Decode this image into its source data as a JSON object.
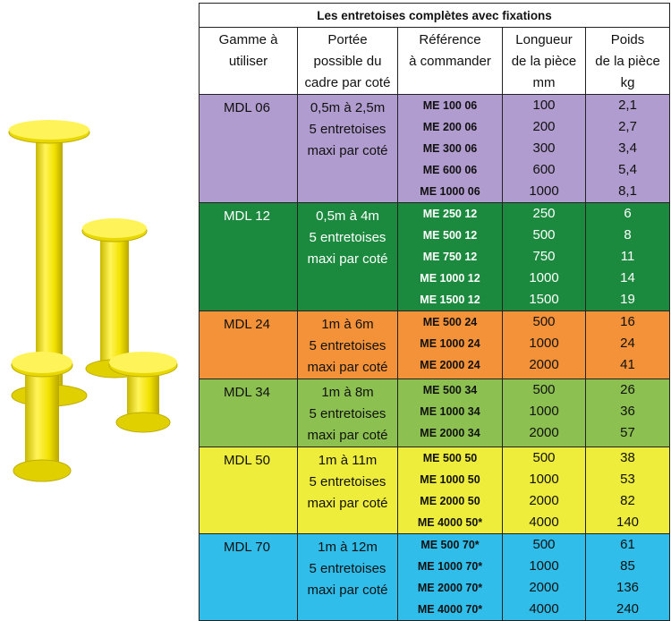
{
  "table": {
    "title": "Les entretoises complètes avec fixations",
    "headers": {
      "gamme": [
        "Gamme à",
        "utiliser"
      ],
      "portee": [
        "Portée",
        "possible du",
        "cadre par coté"
      ],
      "reference": [
        "Référence",
        "à commander"
      ],
      "longueur": [
        "Longueur",
        "de la pièce",
        "mm"
      ],
      "poids": [
        "Poids",
        "de la pièce",
        "kg"
      ]
    },
    "groups": [
      {
        "gamme": "MDL 06",
        "portee": [
          "0,5m à 2,5m",
          "5 entretoises",
          "maxi par coté"
        ],
        "color": "#b09ccf",
        "refs": [
          "ME 100 06",
          "ME 200 06",
          "ME 300 06",
          "ME 600 06",
          "ME 1000 06"
        ],
        "longueurs": [
          "100",
          "200",
          "300",
          "600",
          "1000"
        ],
        "poids": [
          "2,1",
          "2,7",
          "3,4",
          "5,4",
          "8,1"
        ]
      },
      {
        "gamme": "MDL 12",
        "portee": [
          "0,5m à 4m",
          "5 entretoises",
          "maxi par coté"
        ],
        "color": "#1c8a3e",
        "refs": [
          "ME 250 12",
          "ME 500 12",
          "ME 750 12",
          "ME 1000 12",
          "ME 1500 12"
        ],
        "longueurs": [
          "250",
          "500",
          "750",
          "1000",
          "1500"
        ],
        "poids": [
          "6",
          "8",
          "11",
          "14",
          "19"
        ]
      },
      {
        "gamme": "MDL 24",
        "portee": [
          "1m à 6m",
          "5 entretoises",
          "maxi par coté"
        ],
        "color": "#f4923a",
        "refs": [
          "ME 500 24",
          "ME 1000 24",
          "ME 2000 24"
        ],
        "longueurs": [
          "500",
          "1000",
          "2000"
        ],
        "poids": [
          "16",
          "24",
          "41"
        ]
      },
      {
        "gamme": "MDL 34",
        "portee": [
          "1m à 8m",
          "5 entretoises",
          "maxi par coté"
        ],
        "color": "#8cc152",
        "refs": [
          "ME 500 34",
          "ME 1000 34",
          "ME 2000 34"
        ],
        "longueurs": [
          "500",
          "1000",
          "2000"
        ],
        "poids": [
          "26",
          "36",
          "57"
        ]
      },
      {
        "gamme": "MDL 50",
        "portee": [
          "1m à 11m",
          "5 entretoises",
          "maxi par coté"
        ],
        "color": "#eeed3c",
        "refs": [
          "ME 500 50",
          "ME 1000 50",
          "ME 2000 50",
          "ME 4000 50*"
        ],
        "longueurs": [
          "500",
          "1000",
          "2000",
          "4000"
        ],
        "poids": [
          "38",
          "53",
          "82",
          "140"
        ]
      },
      {
        "gamme": "MDL 70",
        "portee": [
          "1m à 12m",
          "5 entretoises",
          "maxi par coté"
        ],
        "color": "#31bde9",
        "refs": [
          "ME 500 70*",
          "ME 1000 70*",
          "ME 2000 70*",
          "ME 4000 70*"
        ],
        "longueurs": [
          "500",
          "1000",
          "2000",
          "4000"
        ],
        "poids": [
          "61",
          "85",
          "136",
          "240"
        ]
      }
    ]
  },
  "illustration": {
    "subject": "yellow-spacer-pieces",
    "color": "#f2e600"
  }
}
